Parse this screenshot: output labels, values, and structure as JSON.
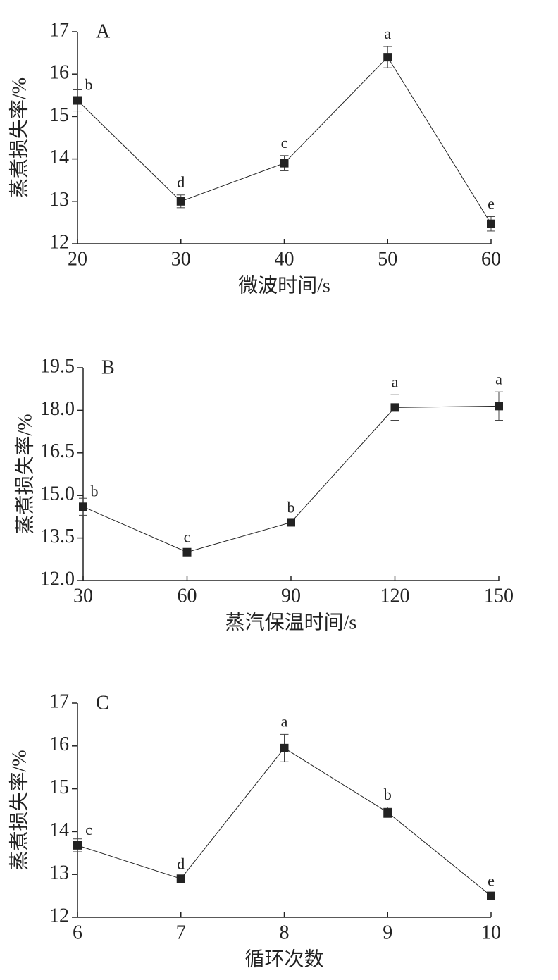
{
  "chart_data": [
    {
      "type": "line",
      "title": "A",
      "xlabel": "微波时间/s",
      "ylabel": "蒸煮损失率/%",
      "x": [
        20,
        30,
        40,
        50,
        60
      ],
      "xlim": [
        20,
        60
      ],
      "xticks": [
        20,
        30,
        40,
        50,
        60
      ],
      "ylim": [
        12,
        17
      ],
      "yticks": [
        12,
        13,
        14,
        15,
        16,
        17
      ],
      "series": [
        {
          "color": "#222222",
          "values": [
            15.38,
            13.0,
            13.9,
            16.4,
            12.47
          ],
          "errors": [
            0.25,
            0.15,
            0.18,
            0.25,
            0.17
          ],
          "labels": [
            "b",
            "d",
            "c",
            "a",
            "e"
          ]
        }
      ]
    },
    {
      "type": "line",
      "title": "B",
      "xlabel": "蒸汽保温时间/s",
      "ylabel": "蒸煮损失率/%",
      "x": [
        30,
        60,
        90,
        120,
        150
      ],
      "xlim": [
        30,
        150
      ],
      "xticks": [
        30,
        60,
        90,
        120,
        150
      ],
      "ylim": [
        12,
        19.5
      ],
      "yticks": [
        {
          "value": 12,
          "label": "12.0"
        },
        13.5,
        {
          "value": 15,
          "label": "15.0"
        },
        16.5,
        {
          "value": 18,
          "label": "18.0"
        },
        19.5
      ],
      "series": [
        {
          "color": "#222222",
          "values": [
            14.6,
            13.0,
            14.05,
            18.1,
            18.15
          ],
          "errors": [
            0.3,
            0.08,
            0.08,
            0.45,
            0.5
          ],
          "labels": [
            "b",
            "c",
            "b",
            "a",
            "a"
          ]
        }
      ]
    },
    {
      "type": "line",
      "title": "C",
      "xlabel": "循环次数",
      "ylabel": "蒸煮损失率/%",
      "x": [
        6,
        7,
        8,
        9,
        10
      ],
      "xlim": [
        6,
        10
      ],
      "xticks": [
        6,
        7,
        8,
        9,
        10
      ],
      "ylim": [
        12,
        17
      ],
      "yticks": [
        12,
        13,
        14,
        15,
        16,
        17
      ],
      "series": [
        {
          "color": "#222222",
          "values": [
            13.68,
            12.9,
            15.95,
            14.45,
            12.5
          ],
          "errors": [
            0.15,
            0.05,
            0.32,
            0.12,
            0.05
          ],
          "labels": [
            "c",
            "d",
            "a",
            "b",
            "e"
          ]
        }
      ]
    }
  ]
}
